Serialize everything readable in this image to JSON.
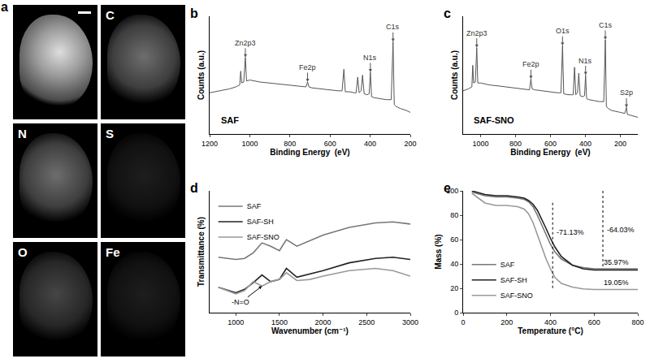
{
  "panel_a": {
    "letter": "a",
    "maps": [
      "C",
      "N",
      "S",
      "O",
      "Fe"
    ]
  },
  "chart_data": [
    {
      "panel": "b",
      "type": "line",
      "label": "SAF",
      "x_label": "Binding Energy  (eV)",
      "y_label": "Counts (a.u.)",
      "xlim": [
        1200,
        200
      ],
      "xticks": [
        1200,
        1000,
        800,
        600,
        400,
        200
      ],
      "ylim": [
        0,
        120
      ],
      "yticks": [],
      "tick_labels": "x",
      "grid": false,
      "x": [
        1200,
        1150,
        1100,
        1070,
        1050,
        1045,
        1040,
        1030,
        1022,
        1016,
        1000,
        950,
        900,
        850,
        800,
        750,
        720,
        712,
        705,
        690,
        650,
        600,
        560,
        540,
        531,
        524,
        500,
        480,
        470,
        462,
        455,
        445,
        438,
        430,
        415,
        405,
        399,
        393,
        380,
        350,
        320,
        295,
        286,
        280,
        270,
        250,
        220,
        200
      ],
      "series": [
        {
          "name": "SAF",
          "color": "#555555",
          "values": [
            42,
            44,
            46,
            48,
            50,
            64,
            52,
            53,
            78,
            54,
            55,
            53,
            52,
            51,
            50,
            49,
            48,
            53,
            48,
            47,
            46,
            45,
            44,
            44,
            66,
            43,
            43,
            42,
            42,
            58,
            42,
            44,
            60,
            41,
            40,
            41,
            63,
            38,
            37,
            36,
            35,
            35,
            94,
            30,
            28,
            26,
            24,
            22
          ]
        }
      ],
      "peaks": [
        {
          "label": "Zn2p3",
          "x": 1022,
          "y": 78
        },
        {
          "label": "Fe2p",
          "x": 712,
          "y": 53
        },
        {
          "label": "N1s",
          "x": 399,
          "y": 63
        },
        {
          "label": "C1s",
          "x": 286,
          "y": 94
        }
      ]
    },
    {
      "panel": "c",
      "type": "line",
      "label": "SAF-SNO",
      "x_label": "Binding Energy  (eV)",
      "y_label": "Counts (a.u.)",
      "xlim": [
        1100,
        100
      ],
      "xticks": [
        1000,
        800,
        600,
        400,
        200
      ],
      "ylim": [
        0,
        120
      ],
      "yticks": [],
      "tick_labels": "x",
      "grid": false,
      "x": [
        1100,
        1070,
        1050,
        1045,
        1040,
        1030,
        1022,
        1016,
        1000,
        950,
        900,
        850,
        800,
        750,
        720,
        712,
        705,
        690,
        650,
        600,
        560,
        540,
        531,
        524,
        500,
        480,
        470,
        462,
        455,
        445,
        438,
        430,
        415,
        405,
        399,
        393,
        380,
        350,
        320,
        295,
        286,
        280,
        270,
        250,
        230,
        200,
        175,
        165,
        160,
        140,
        120,
        100
      ],
      "series": [
        {
          "name": "SAF-SNO",
          "color": "#555555",
          "values": [
            44,
            46,
            48,
            70,
            52,
            53,
            88,
            52,
            52,
            50,
            49,
            48,
            47,
            46,
            45,
            56,
            46,
            45,
            44,
            43,
            42,
            42,
            90,
            41,
            40,
            40,
            40,
            68,
            40,
            42,
            62,
            39,
            38,
            39,
            60,
            36,
            35,
            34,
            33,
            33,
            96,
            28,
            26,
            24,
            23,
            22,
            21,
            27,
            20,
            19,
            18,
            17
          ]
        }
      ],
      "peaks": [
        {
          "label": "Zn2p3",
          "x": 1022,
          "y": 88
        },
        {
          "label": "Fe2p",
          "x": 712,
          "y": 56
        },
        {
          "label": "O1s",
          "x": 531,
          "y": 90
        },
        {
          "label": "N1s",
          "x": 399,
          "y": 60
        },
        {
          "label": "C1s",
          "x": 286,
          "y": 96
        },
        {
          "label": "S2p",
          "x": 165,
          "y": 27
        }
      ]
    },
    {
      "panel": "d",
      "type": "line",
      "x_label": "Wavenumber (cm⁻¹)",
      "y_label": "Transmittance (%)",
      "xlim": [
        700,
        3000
      ],
      "xticks": [
        1000,
        1500,
        2000,
        2500,
        3000
      ],
      "ylim": [
        10,
        120
      ],
      "yticks": [],
      "tick_labels": "x",
      "grid": false,
      "legend": "upper left",
      "x": [
        800,
        1000,
        1100,
        1200,
        1300,
        1400,
        1500,
        1580,
        1700,
        1850,
        2000,
        2300,
        2600,
        2800,
        3000
      ],
      "series": [
        {
          "name": "SAF",
          "color": "#777777",
          "values": [
            60,
            58,
            59,
            64,
            73,
            70,
            66,
            76,
            70,
            75,
            80,
            87,
            91,
            92,
            90
          ]
        },
        {
          "name": "SAF-SH",
          "color": "#222222",
          "values": [
            33,
            28,
            31,
            37,
            44,
            38,
            40,
            50,
            42,
            45,
            48,
            55,
            59,
            60,
            58
          ]
        },
        {
          "name": "SAF-SNO",
          "color": "#999999",
          "values": [
            33,
            27,
            30,
            38,
            34,
            38,
            40,
            46,
            39,
            40,
            43,
            48,
            50,
            48,
            43
          ]
        }
      ],
      "arrow_labels": [
        {
          "text": "-N=O",
          "x": 1300,
          "y": 34
        }
      ]
    },
    {
      "panel": "e",
      "type": "line",
      "x_label": "Temperature (°C)",
      "y_label": "Mass (%)",
      "xlim": [
        0,
        800
      ],
      "xticks": [
        0,
        200,
        400,
        600,
        800
      ],
      "ylim": [
        0,
        100
      ],
      "yticks": [
        0,
        20,
        40,
        60,
        80,
        100
      ],
      "grid": false,
      "legend": "lower left",
      "x": [
        40,
        100,
        150,
        200,
        250,
        280,
        300,
        320,
        340,
        360,
        380,
        400,
        420,
        450,
        500,
        550,
        600,
        700,
        800
      ],
      "series": [
        {
          "name": "SAF",
          "color": "#777777",
          "values": [
            99,
            96,
            95,
            95,
            94,
            93,
            91,
            87,
            80,
            72,
            64,
            56,
            50,
            44,
            39,
            37,
            36,
            36,
            36
          ]
        },
        {
          "name": "SAF-SH",
          "color": "#222222",
          "values": [
            100,
            97,
            96,
            96,
            95,
            94,
            92,
            89,
            84,
            77,
            69,
            61,
            54,
            46,
            39,
            36,
            35,
            35,
            35
          ]
        },
        {
          "name": "SAF-SNO",
          "color": "#999999",
          "values": [
            98,
            90,
            88,
            88,
            87,
            85,
            81,
            74,
            64,
            54,
            44,
            36,
            29,
            24,
            21,
            19.5,
            19,
            19,
            19
          ]
        }
      ],
      "brackets": [
        {
          "x": 640,
          "from": 100,
          "to": 35.97,
          "label": "-64.03%",
          "label_y": 68
        },
        {
          "x": 410,
          "from": 90.18,
          "to": 19.05,
          "label": "-71.13%",
          "label_y": 66
        }
      ],
      "annotations": [
        {
          "text": "35.97%",
          "x": 700,
          "y": 37
        },
        {
          "text": "19.05%",
          "x": 700,
          "y": 20
        }
      ]
    }
  ]
}
